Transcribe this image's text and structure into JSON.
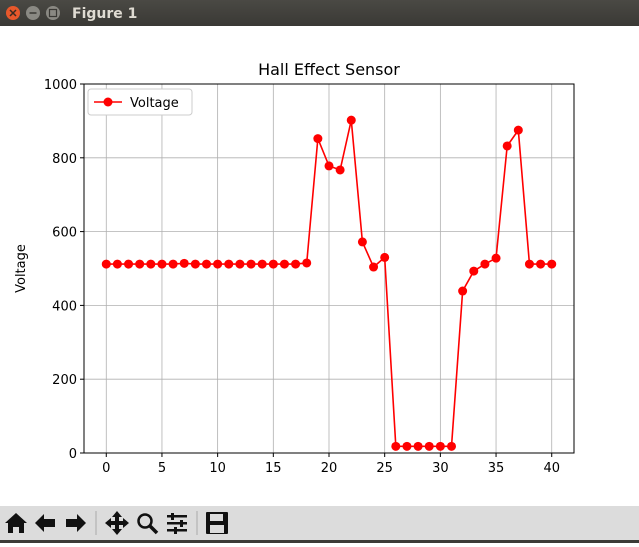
{
  "window": {
    "title": "Figure 1"
  },
  "chart_data": {
    "type": "line",
    "title": "Hall Effect Sensor",
    "y_label": "Voltage",
    "x": [
      0,
      1,
      2,
      3,
      4,
      5,
      6,
      7,
      8,
      9,
      10,
      11,
      12,
      13,
      14,
      15,
      16,
      17,
      18,
      19,
      20,
      21,
      22,
      23,
      24,
      25,
      26,
      27,
      28,
      29,
      30,
      31,
      32,
      33,
      34,
      35,
      36,
      37,
      38,
      39,
      40
    ],
    "series": [
      {
        "name": "Voltage",
        "color": "#ff0000",
        "values": [
          512,
          512,
          512,
          512,
          512,
          512,
          512,
          514,
          512,
          512,
          512,
          512,
          512,
          512,
          512,
          512,
          512,
          512,
          515,
          852,
          778,
          767,
          902,
          572,
          504,
          530,
          18,
          18,
          18,
          18,
          18,
          18,
          439,
          493,
          512,
          528,
          832,
          875,
          512,
          512,
          512
        ]
      }
    ],
    "xlim": [
      -2,
      42
    ],
    "ylim": [
      0,
      1000
    ],
    "xticks": [
      0,
      5,
      10,
      15,
      20,
      25,
      30,
      35,
      40
    ],
    "yticks": [
      0,
      200,
      400,
      600,
      800,
      1000
    ],
    "grid": true,
    "legend": "upper left"
  }
}
